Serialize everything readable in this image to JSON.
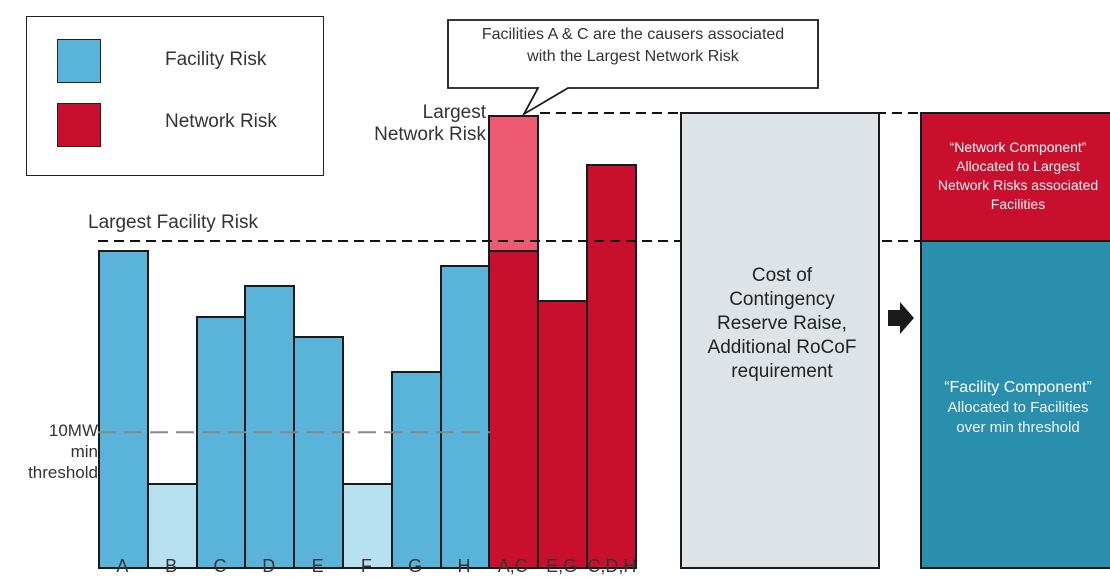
{
  "legend": {
    "items": [
      {
        "label": "Facility Risk",
        "color": "#5ab4d9"
      },
      {
        "label": "Network Risk",
        "color": "#c8102e"
      }
    ]
  },
  "callout": {
    "line1": "Facilities A & C are the causers associated",
    "line2": "with the Largest Network Risk"
  },
  "annotations": {
    "largest_network_risk_1": "Largest",
    "largest_network_risk_2": "Network Risk",
    "largest_facility_risk": "Largest Facility Risk",
    "threshold_1": "10MW",
    "threshold_2": "min",
    "threshold_3": "threshold"
  },
  "chart_data": {
    "type": "bar",
    "categories": [
      "A",
      "B",
      "C",
      "D",
      "E",
      "F",
      "G",
      "H",
      "A,C",
      "E,G",
      "C,D,H"
    ],
    "bars": [
      {
        "category": "A",
        "kind": "facility",
        "value": 6.3
      },
      {
        "category": "B",
        "kind": "facility-below-threshold",
        "value": 1.7
      },
      {
        "category": "C",
        "kind": "facility",
        "value": 5.0
      },
      {
        "category": "D",
        "kind": "facility",
        "value": 5.6
      },
      {
        "category": "E",
        "kind": "facility",
        "value": 4.6
      },
      {
        "category": "F",
        "kind": "facility-below-threshold",
        "value": 1.7
      },
      {
        "category": "G",
        "kind": "facility",
        "value": 3.9
      },
      {
        "category": "H",
        "kind": "facility",
        "value": 6.0
      },
      {
        "category": "A,C",
        "kind": "network",
        "value": 6.3,
        "excess": 2.7
      },
      {
        "category": "E,G",
        "kind": "network",
        "value": 5.3
      },
      {
        "category": "C,D,H",
        "kind": "network",
        "value": 8.0
      }
    ],
    "ylim": [
      0,
      9.0
    ],
    "threshold": 2.7,
    "largest_facility_risk": 6.3,
    "largest_network_risk": 9.0,
    "colors": {
      "facility": "#5ab4d9",
      "facility_light": "#b7e0f0",
      "network": "#c8102e",
      "network_excess": "#ef5a73"
    }
  },
  "cost_box": {
    "lines": [
      "Cost of",
      "Contingency",
      "Reserve Raise,",
      "Additional RoCoF",
      "requirement"
    ]
  },
  "arrow": {
    "icon": "right-arrow-icon"
  },
  "network_component": {
    "title": "“Network Component”",
    "desc": [
      "Allocated to Largest",
      "Network Risks associated",
      "Facilities"
    ],
    "color": "#c8102e"
  },
  "facility_component": {
    "title": "“Facility Component”",
    "desc": [
      "Allocated to Facilities",
      "over min threshold"
    ],
    "color": "#2a8fad"
  }
}
